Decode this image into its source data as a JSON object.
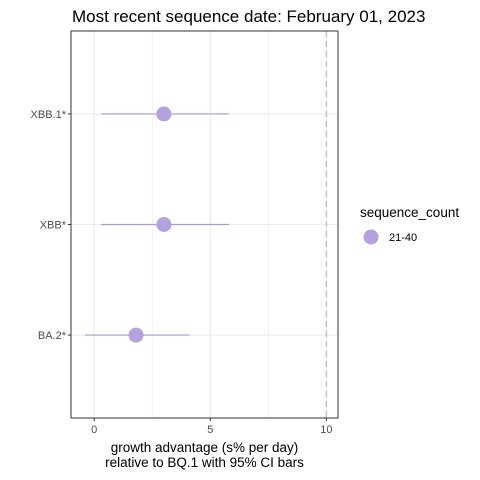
{
  "chart_data": {
    "type": "scatter",
    "title": "Most recent sequence date: February 01, 2023",
    "xlabel_lines": [
      "growth advantage (s% per day)",
      "relative to  BQ.1  with 95% CI bars"
    ],
    "ylabel": "",
    "xlim": [
      -1,
      10.5
    ],
    "x_ticks": [
      0,
      5,
      10
    ],
    "categories": [
      "XBB.1*",
      "XBB*",
      "BA.2*"
    ],
    "points": [
      {
        "category": "XBB.1*",
        "x": 3.0,
        "ci_low": 0.3,
        "ci_high": 5.8,
        "sequence_count": "21-40"
      },
      {
        "category": "XBB*",
        "x": 3.0,
        "ci_low": 0.3,
        "ci_high": 5.8,
        "sequence_count": "21-40"
      },
      {
        "category": "BA.2*",
        "x": 1.8,
        "ci_low": -0.4,
        "ci_high": 4.1,
        "sequence_count": "21-40"
      }
    ],
    "reference_line_x": 10,
    "grid": true,
    "legend": {
      "title": "sequence_count",
      "position": "right",
      "entries": [
        {
          "label": "21-40",
          "color": "#b3a2dd"
        }
      ]
    },
    "colors": {
      "point": "#b3a2dd",
      "ci_bar": "#a898d6",
      "grid": "#ebebeb",
      "panel_border": "#333333",
      "reference_line": "#bdbdbd"
    }
  }
}
